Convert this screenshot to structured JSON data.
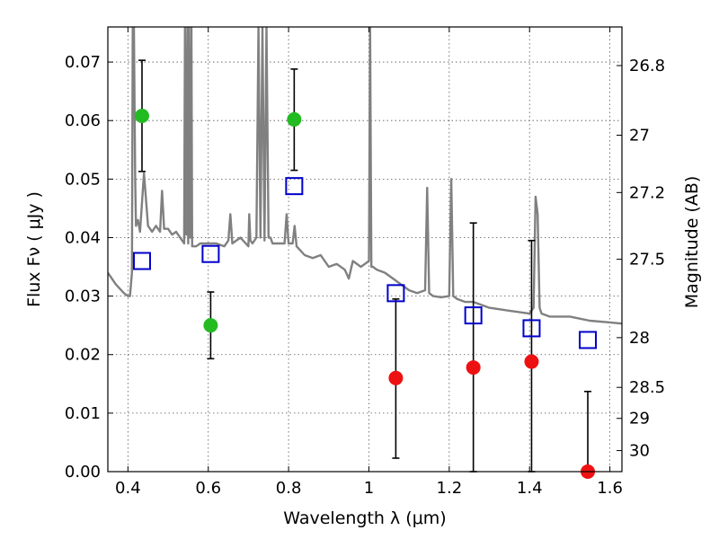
{
  "chart_data": {
    "type": "scatter",
    "xlabel": "Wavelength  λ (μm)",
    "ylabel": "Flux  Fν  ( μJy )",
    "y2label": "Magnitude (AB)",
    "xlim": [
      0.35,
      1.63
    ],
    "ylim": [
      0.0,
      0.076
    ],
    "grid": true,
    "x_ticks": [
      {
        "value": 0.4,
        "label": "0.4"
      },
      {
        "value": 0.6,
        "label": "0.6"
      },
      {
        "value": 0.8,
        "label": "0.8"
      },
      {
        "value": 1.0,
        "label": "1"
      },
      {
        "value": 1.2,
        "label": "1.2"
      },
      {
        "value": 1.4,
        "label": "1.4"
      },
      {
        "value": 1.6,
        "label": "1.6"
      }
    ],
    "y_ticks": [
      {
        "value": 0.0,
        "label": "0.00"
      },
      {
        "value": 0.01,
        "label": "0.01"
      },
      {
        "value": 0.02,
        "label": "0.02"
      },
      {
        "value": 0.03,
        "label": "0.03"
      },
      {
        "value": 0.04,
        "label": "0.04"
      },
      {
        "value": 0.05,
        "label": "0.05"
      },
      {
        "value": 0.06,
        "label": "0.06"
      },
      {
        "value": 0.07,
        "label": "0.07"
      }
    ],
    "y2_ticks": [
      {
        "flux": 0.0694,
        "label": "26.8"
      },
      {
        "flux": 0.0575,
        "label": "27"
      },
      {
        "flux": 0.0477,
        "label": "27.2"
      },
      {
        "flux": 0.0363,
        "label": "27.5"
      },
      {
        "flux": 0.0229,
        "label": "28"
      },
      {
        "flux": 0.0144,
        "label": "28.5"
      },
      {
        "flux": 0.0091,
        "label": "29"
      },
      {
        "flux": 0.0036,
        "label": "30"
      }
    ],
    "model_spectrum": {
      "color": "#808080",
      "x": [
        0.35,
        0.37,
        0.39,
        0.4,
        0.405,
        0.41,
        0.412,
        0.415,
        0.418,
        0.42,
        0.425,
        0.43,
        0.44,
        0.45,
        0.46,
        0.47,
        0.48,
        0.485,
        0.49,
        0.5,
        0.51,
        0.52,
        0.53,
        0.54,
        0.542,
        0.545,
        0.548,
        0.55,
        0.552,
        0.555,
        0.558,
        0.56,
        0.57,
        0.58,
        0.6,
        0.62,
        0.64,
        0.65,
        0.655,
        0.66,
        0.68,
        0.7,
        0.702,
        0.705,
        0.71,
        0.72,
        0.725,
        0.73,
        0.735,
        0.74,
        0.745,
        0.75,
        0.755,
        0.76,
        0.78,
        0.79,
        0.795,
        0.8,
        0.81,
        0.815,
        0.82,
        0.84,
        0.86,
        0.88,
        0.9,
        0.92,
        0.94,
        0.95,
        0.96,
        0.98,
        0.99,
        1.0,
        1.003,
        1.006,
        1.01,
        1.02,
        1.04,
        1.06,
        1.08,
        1.1,
        1.12,
        1.14,
        1.145,
        1.15,
        1.16,
        1.18,
        1.2,
        1.205,
        1.21,
        1.22,
        1.24,
        1.26,
        1.28,
        1.3,
        1.35,
        1.4,
        1.41,
        1.415,
        1.42,
        1.425,
        1.43,
        1.45,
        1.5,
        1.55,
        1.6,
        1.63
      ],
      "y": [
        0.034,
        0.032,
        0.0305,
        0.03,
        0.03,
        0.034,
        0.076,
        0.076,
        0.05,
        0.042,
        0.043,
        0.041,
        0.051,
        0.042,
        0.041,
        0.042,
        0.041,
        0.048,
        0.0415,
        0.0415,
        0.0405,
        0.041,
        0.04,
        0.039,
        0.076,
        0.0405,
        0.076,
        0.039,
        0.076,
        0.04,
        0.076,
        0.0385,
        0.0385,
        0.039,
        0.039,
        0.039,
        0.0385,
        0.0395,
        0.044,
        0.039,
        0.04,
        0.0385,
        0.044,
        0.0395,
        0.039,
        0.04,
        0.076,
        0.04,
        0.076,
        0.0395,
        0.076,
        0.04,
        0.04,
        0.039,
        0.039,
        0.039,
        0.044,
        0.039,
        0.039,
        0.042,
        0.0385,
        0.037,
        0.0365,
        0.037,
        0.035,
        0.0355,
        0.0345,
        0.033,
        0.036,
        0.035,
        0.0355,
        0.036,
        0.076,
        0.035,
        0.035,
        0.0345,
        0.034,
        0.033,
        0.032,
        0.031,
        0.0305,
        0.031,
        0.0485,
        0.0305,
        0.03,
        0.0298,
        0.03,
        0.05,
        0.03,
        0.0295,
        0.029,
        0.029,
        0.0285,
        0.028,
        0.0275,
        0.027,
        0.028,
        0.047,
        0.044,
        0.028,
        0.027,
        0.0265,
        0.0265,
        0.0258,
        0.0255,
        0.0253
      ]
    },
    "series": [
      {
        "marker": "circle",
        "color": "#22bb22",
        "points": [
          {
            "x": 0.435,
            "y": 0.0608,
            "err": [
              0.0513,
              0.0703
            ]
          },
          {
            "x": 0.606,
            "y": 0.025,
            "err": [
              0.0193,
              0.0307
            ]
          },
          {
            "x": 0.814,
            "y": 0.0602,
            "err": [
              0.0515,
              0.0688
            ]
          }
        ]
      },
      {
        "marker": "circle",
        "color": "#ee1111",
        "points": [
          {
            "x": 1.067,
            "y": 0.016,
            "err": [
              0.0023,
              0.0295
            ]
          },
          {
            "x": 1.26,
            "y": 0.0178,
            "err": [
              0.0,
              0.0425
            ]
          },
          {
            "x": 1.405,
            "y": 0.0188,
            "err": [
              0.0,
              0.0395
            ]
          },
          {
            "x": 1.545,
            "y": 0.0,
            "err": [
              0.0,
              0.0137
            ]
          }
        ]
      },
      {
        "marker": "open-square",
        "color": "#0000cc",
        "points": [
          {
            "x": 0.435,
            "y": 0.036
          },
          {
            "x": 0.606,
            "y": 0.0372
          },
          {
            "x": 0.814,
            "y": 0.0488
          },
          {
            "x": 1.067,
            "y": 0.0305
          },
          {
            "x": 1.26,
            "y": 0.0267
          },
          {
            "x": 1.405,
            "y": 0.0245
          },
          {
            "x": 1.545,
            "y": 0.0225
          }
        ]
      }
    ]
  }
}
